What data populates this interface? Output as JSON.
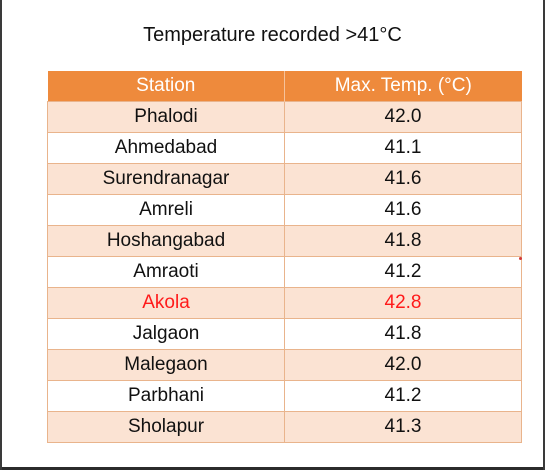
{
  "chart_data": {
    "type": "table",
    "title": "Temperature recorded >41°C",
    "columns": [
      "Station",
      "Max. Temp. (°C)"
    ],
    "rows": [
      {
        "station": "Phalodi",
        "temp": "42.0"
      },
      {
        "station": "Ahmedabad",
        "temp": "41.1"
      },
      {
        "station": "Surendranagar",
        "temp": "41.6"
      },
      {
        "station": "Amreli",
        "temp": "41.6"
      },
      {
        "station": "Hoshangabad",
        "temp": "41.8"
      },
      {
        "station": "Amraoti",
        "temp": "41.2"
      },
      {
        "station": "Akola",
        "temp": "42.8",
        "highlight": true
      },
      {
        "station": "Jalgaon",
        "temp": "41.8"
      },
      {
        "station": "Malegaon",
        "temp": "42.0"
      },
      {
        "station": "Parbhani",
        "temp": "41.2"
      },
      {
        "station": "Sholapur",
        "temp": "41.3"
      }
    ]
  },
  "colors": {
    "header": "#ee8a3c",
    "band": "#fbe3d3",
    "highlight_text": "#ff1a1a"
  }
}
